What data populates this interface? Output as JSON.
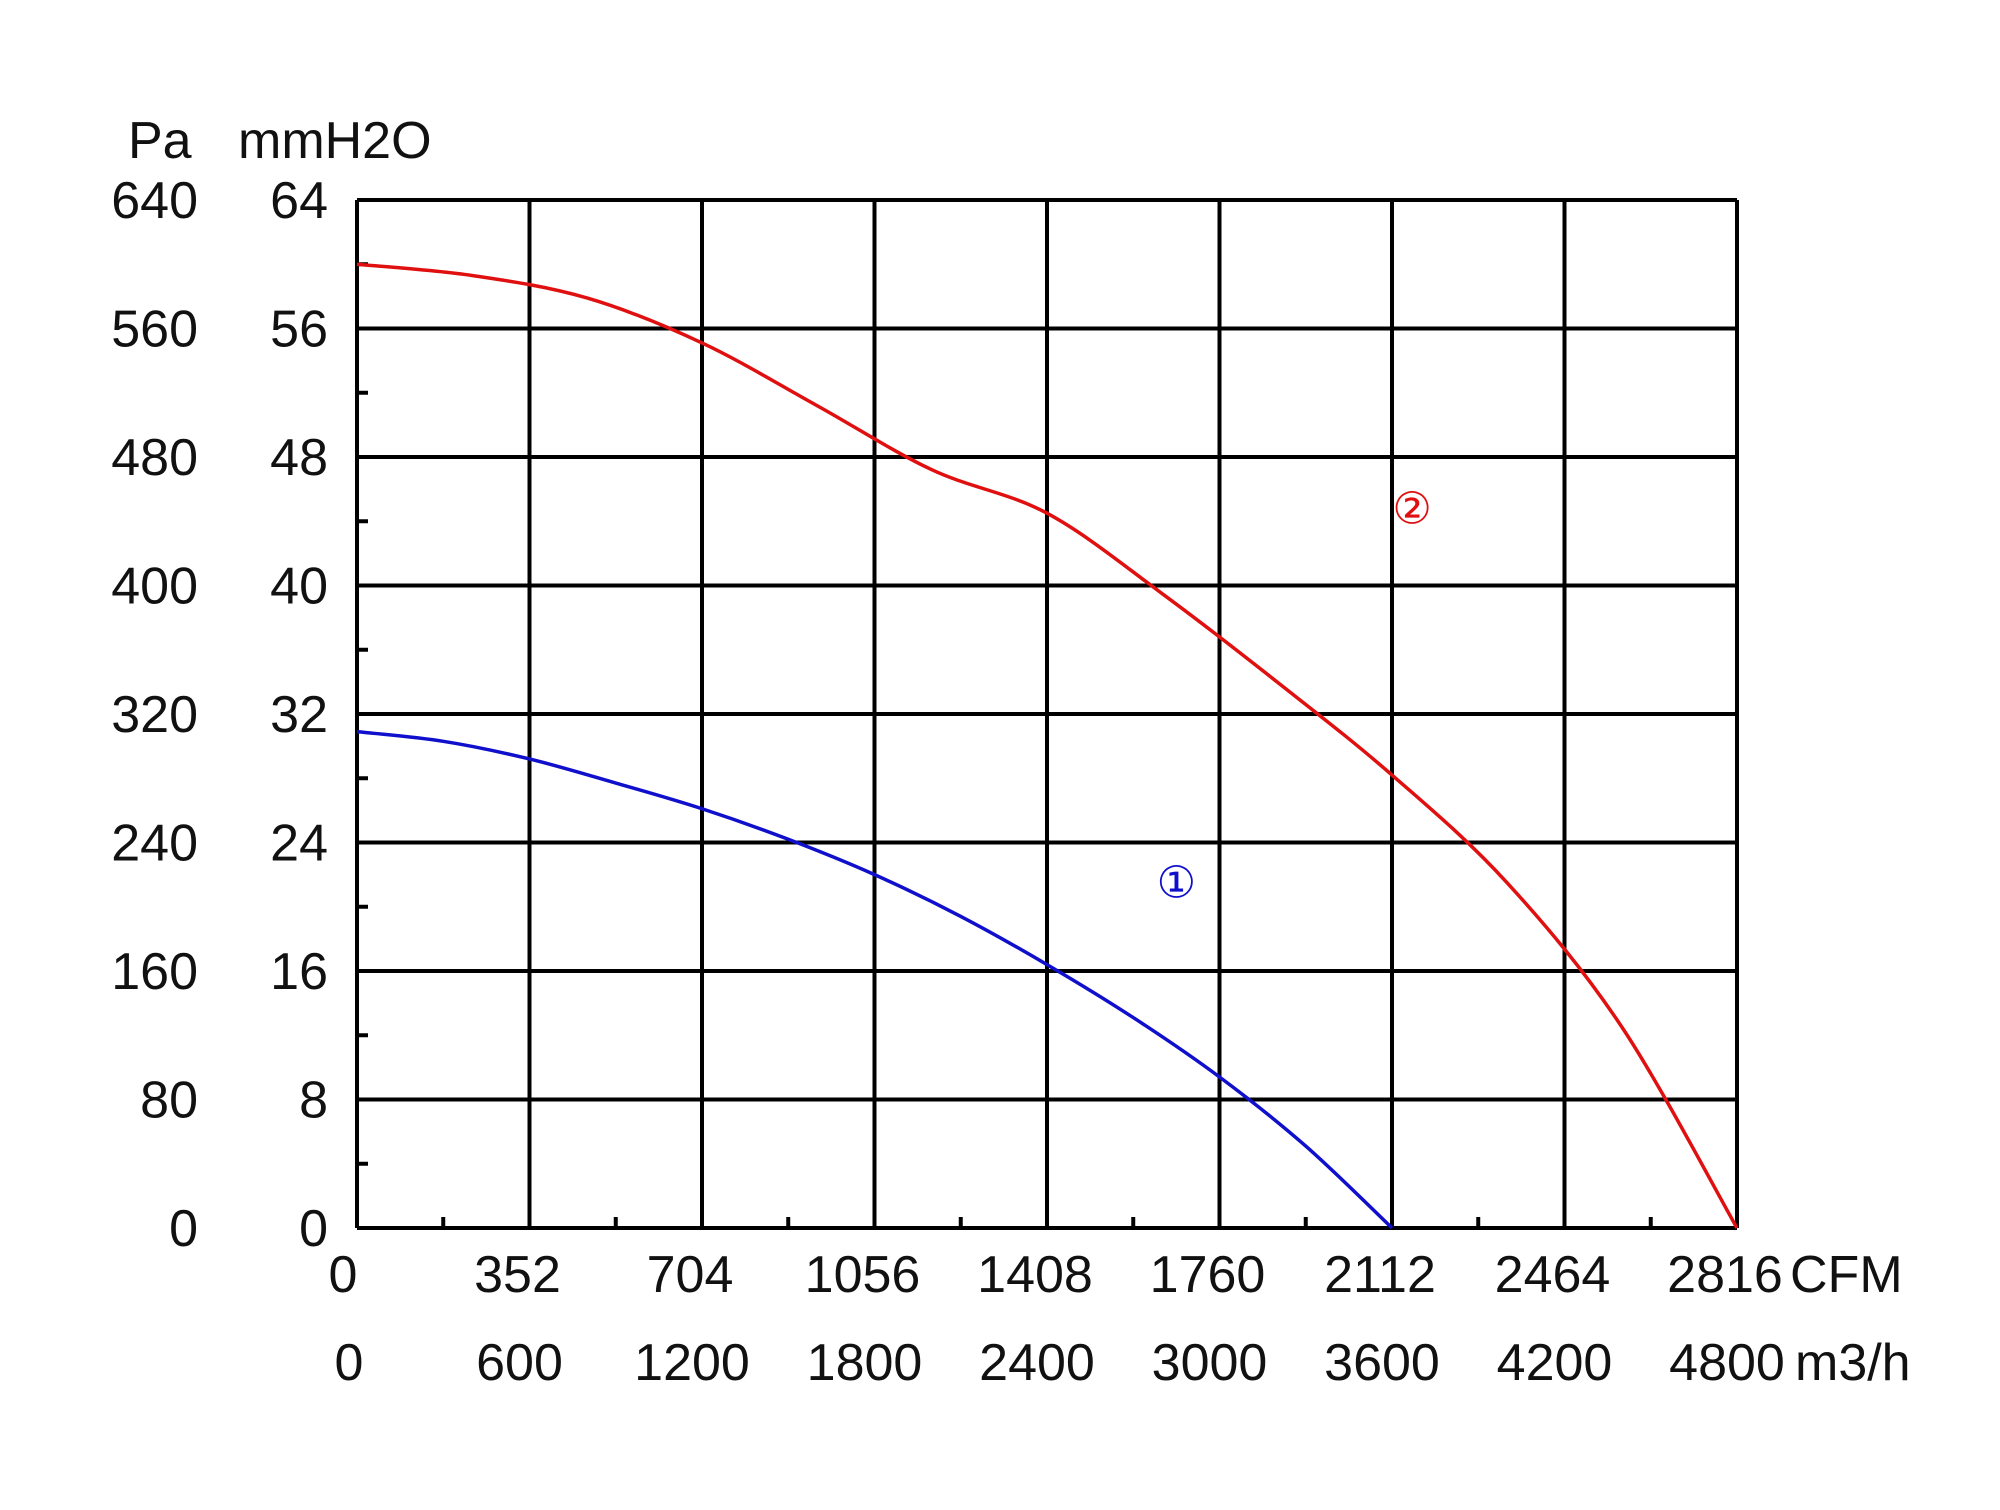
{
  "chart_data": {
    "type": "line",
    "title": "",
    "x_axes": [
      {
        "unit": "CFM",
        "ticks": [
          "0",
          "352",
          "704",
          "1056",
          "1408",
          "1760",
          "2112",
          "2464",
          "2816"
        ],
        "range": [
          0,
          2816
        ]
      },
      {
        "unit": "m3/h",
        "ticks": [
          "0",
          "600",
          "1200",
          "1800",
          "2400",
          "3000",
          "3600",
          "4200",
          "4800"
        ],
        "range": [
          0,
          4800
        ]
      }
    ],
    "y_axes": [
      {
        "unit": "Pa",
        "ticks": [
          "640",
          "560",
          "480",
          "400",
          "320",
          "240",
          "160",
          "80",
          "0"
        ],
        "range": [
          0,
          640
        ]
      },
      {
        "unit": "mmH2O",
        "ticks": [
          "64",
          "56",
          "48",
          "40",
          "32",
          "24",
          "16",
          "8",
          "0"
        ],
        "range": [
          0,
          64
        ]
      }
    ],
    "grid": true,
    "series": [
      {
        "name": "①",
        "color": "#1010cc",
        "x_unit": "m3/h",
        "y_unit": "Pa",
        "x": [
          0,
          300,
          600,
          900,
          1200,
          1500,
          1800,
          2100,
          2400,
          2700,
          3000,
          3300,
          3600
        ],
        "y": [
          309,
          303,
          292,
          277,
          261,
          242,
          220,
          194,
          164,
          131,
          94,
          51,
          0
        ]
      },
      {
        "name": "②",
        "color": "#e01010",
        "x_unit": "m3/h",
        "y_unit": "Pa",
        "x": [
          0,
          400,
          800,
          1200,
          1600,
          2000,
          2400,
          2800,
          3200,
          3600,
          4000,
          4400,
          4800
        ],
        "y": [
          600,
          593,
          579,
          551,
          512,
          472,
          445,
          395,
          340,
          282,
          215,
          125,
          0
        ]
      }
    ],
    "markers": [
      {
        "label": "①",
        "color": "#1010cc",
        "x": 2850,
        "y": 215
      },
      {
        "label": "②",
        "color": "#e01010",
        "x": 3670,
        "y": 448
      }
    ]
  }
}
